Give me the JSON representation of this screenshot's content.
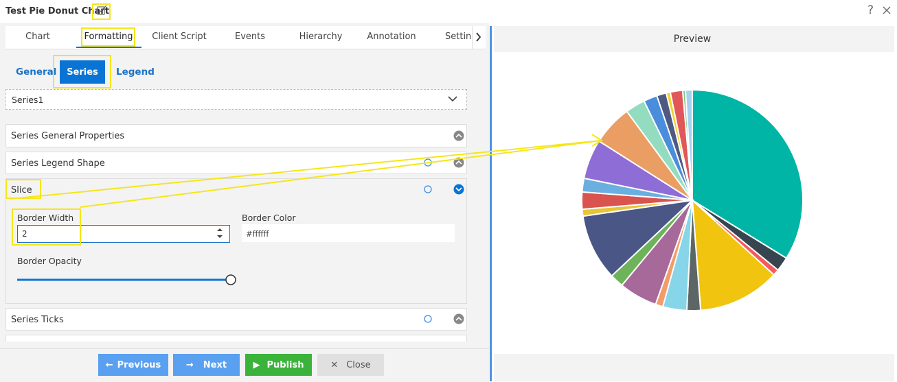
{
  "header": {
    "title": "Test Pie Donut Chart",
    "help": "?"
  },
  "tabs": [
    "Chart",
    "Formatting",
    "Client Script",
    "Events",
    "Hierarchy",
    "Annotation",
    "Settings"
  ],
  "subtabs": [
    "General",
    "Series",
    "Legend"
  ],
  "series_select": "Series1",
  "sections": [
    "Series General Properties",
    "Series Legend Shape",
    "Slice",
    "Series Ticks"
  ],
  "slice": {
    "border_width_label": "Border Width",
    "border_width": "2",
    "border_color_label": "Border Color",
    "border_color": "#ffffff",
    "border_opacity_label": "Border Opacity"
  },
  "buttons": [
    "Previous",
    "Next",
    "Publish",
    "Close"
  ],
  "preview": {
    "title": "Preview",
    "chart": {
      "type": "pie",
      "values": [
        33.8,
        2.1,
        0.9,
        12,
        2,
        3.5,
        1.1,
        5.6,
        2,
        9.7,
        1,
        2.5,
        2,
        5.8,
        5.9,
        2.9,
        2,
        1.4,
        0.6,
        1.8,
        0.4,
        1
      ],
      "colors": [
        "#00b5a5",
        "#36454f",
        "#f45b5b",
        "#f1c40f",
        "#5d6666",
        "#87d5e8",
        "#f39c6b",
        "#a66999",
        "#6db35a",
        "#4a5686",
        "#e8c43a",
        "#d9534f",
        "#6aafe0",
        "#8e6dd6",
        "#eb9e63",
        "#93dcc0",
        "#4a8ddc",
        "#4f5a83",
        "#f3d02d",
        "#e15759",
        "#7fc97f",
        "#a8d1f0"
      ]
    }
  }
}
